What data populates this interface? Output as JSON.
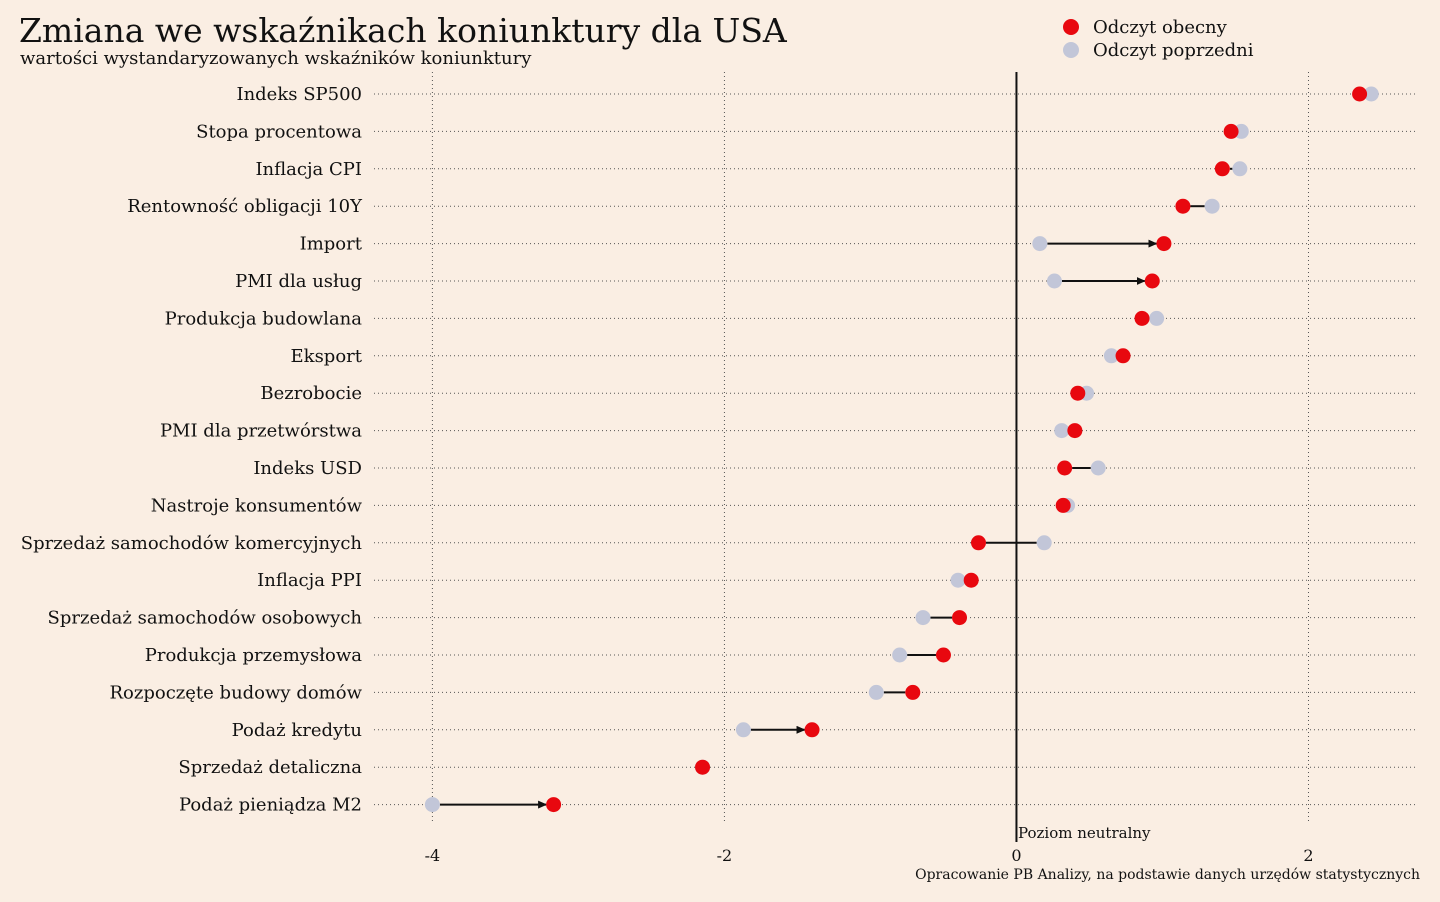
{
  "colors": {
    "background": "#faeee3",
    "current": "#e8080f",
    "previous": "#c2c6d8",
    "axis": "#111111",
    "grid": "#555555"
  },
  "chart_data": {
    "type": "dumbbell",
    "title": "Zmiana we wskaźnikach koniunktury dla USA",
    "subtitle": "wartości wystandaryzowanych wskaźników koniunktury",
    "legend": {
      "position": "top-right",
      "current": "Odczyt obecny",
      "previous": "Odczyt poprzedni"
    },
    "annotation": "Poziom neutralny",
    "source": "Opracowanie PB Analizy, na podstawie danych urzędów statystycznych",
    "xlim": [
      -4.4,
      2.75
    ],
    "xticks": [
      -4,
      -2,
      0,
      2
    ],
    "xtick_labels": [
      "-4",
      "-2",
      "0",
      "2"
    ],
    "grid": true,
    "categories": [
      "Indeks SP500",
      "Stopa procentowa",
      "Inflacja CPI",
      "Rentowność obligacji 10Y",
      "Import",
      "PMI dla usług",
      "Produkcja budowlana",
      "Eksport",
      "Bezrobocie",
      "PMI dla przetwórstwa",
      "Indeks USD",
      "Nastroje konsumentów",
      "Sprzedaż samochodów komercyjnych",
      "Inflacja PPI",
      "Sprzedaż samochodów osobowych",
      "Produkcja przemysłowa",
      "Rozpoczęte budowy domów",
      "Podaż kredytu",
      "Sprzedaż detaliczna",
      "Podaż pieniądza M2"
    ],
    "series": [
      {
        "name": "Odczyt poprzedni",
        "values": [
          2.43,
          1.54,
          1.53,
          1.34,
          0.16,
          0.26,
          0.96,
          0.65,
          0.48,
          0.31,
          0.56,
          0.35,
          0.19,
          -0.4,
          -0.64,
          -0.8,
          -0.96,
          -1.87,
          -2.15,
          -4.0
        ]
      },
      {
        "name": "Odczyt obecny",
        "values": [
          2.35,
          1.47,
          1.41,
          1.14,
          1.01,
          0.93,
          0.86,
          0.73,
          0.42,
          0.4,
          0.33,
          0.32,
          -0.26,
          -0.31,
          -0.39,
          -0.5,
          -0.71,
          -1.4,
          -2.15,
          -3.17
        ]
      }
    ]
  }
}
